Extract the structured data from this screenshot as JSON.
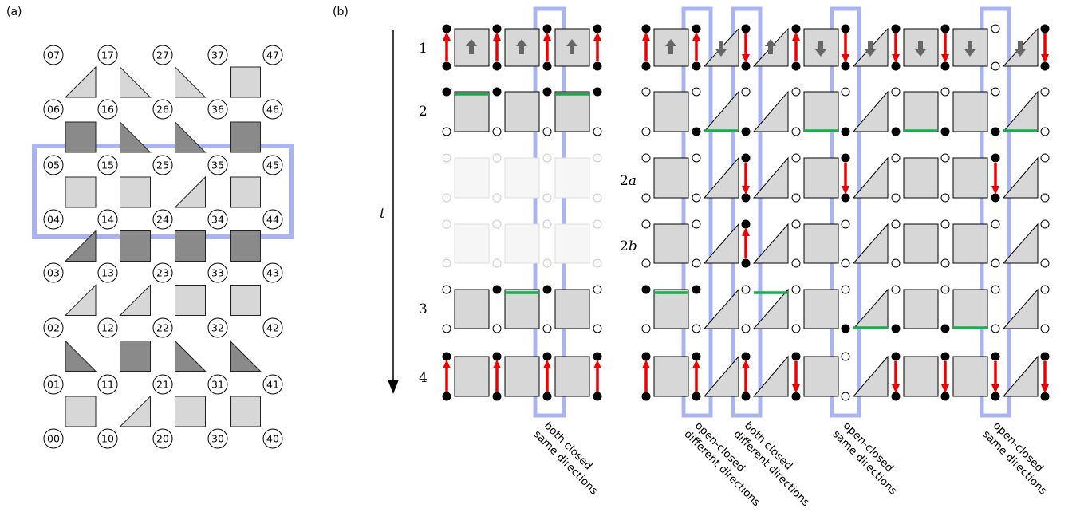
{
  "panels": {
    "a": {
      "label": "(a)"
    },
    "b": {
      "label": "(b)"
    }
  },
  "grid_a": {
    "nodes": [
      "00",
      "01",
      "02",
      "03",
      "04",
      "05",
      "06",
      "07",
      "10",
      "11",
      "12",
      "13",
      "14",
      "15",
      "16",
      "17",
      "20",
      "21",
      "22",
      "23",
      "24",
      "25",
      "26",
      "27",
      "30",
      "31",
      "32",
      "33",
      "34",
      "35",
      "36",
      "37",
      "40",
      "41",
      "42",
      "43",
      "44",
      "45",
      "46",
      "47"
    ],
    "rows": [
      [
        "sq-light",
        "tri-tr-light",
        "sq-light",
        "sq-light"
      ],
      [
        "tri-bl-dark",
        "sq-dark",
        "tri-br-dark",
        "tri-bl-dark"
      ],
      [
        "tri-tr-light",
        "tri-tr-light",
        "sq-light",
        "sq-light"
      ],
      [
        "tri-tr-dark",
        "sq-dark",
        "sq-dark",
        "sq-dark"
      ],
      [
        "sq-light",
        "sq-light",
        "tri-tr-light",
        "sq-light"
      ],
      [
        "sq-dark",
        "tri-br-dark",
        "tri-bl-dark",
        "sq-dark"
      ],
      [
        "tri-tr-light",
        "tri-br-light",
        "tri-br-light",
        "sq-light"
      ]
    ]
  },
  "panel_b": {
    "time_label": "t",
    "step_labels": [
      "1",
      "2",
      "3",
      "4"
    ],
    "substep_labels": [
      {
        "num": "2",
        "var": "a"
      },
      {
        "num": "2",
        "var": "b"
      }
    ],
    "highlight_captions": [
      [
        "both closed",
        "same directions"
      ],
      [
        "open-closed",
        "different directions"
      ],
      [
        "both closed",
        "different directions"
      ],
      [
        "open-closed",
        "same directions"
      ],
      [
        "open-closed",
        "same directions"
      ]
    ]
  },
  "colors": {
    "highlight": "#aab4f0",
    "light_fill": "#d7d7d7",
    "dark_fill": "#8a8a8a",
    "arrow": "#ee0000",
    "bond": "#1aab4e",
    "ghost": "#cccccc"
  }
}
